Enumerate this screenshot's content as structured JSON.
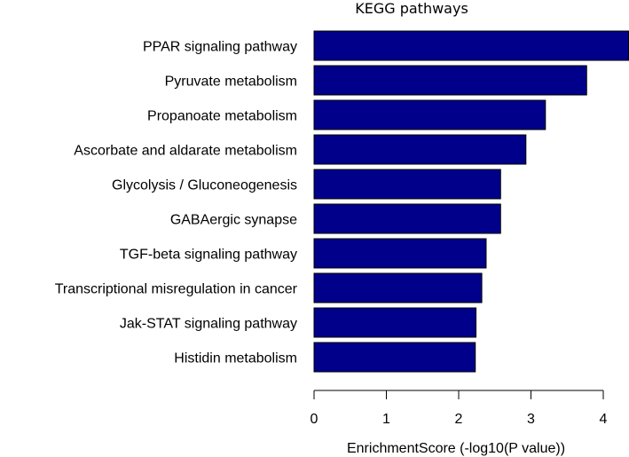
{
  "chart_data": {
    "type": "bar",
    "orientation": "horizontal",
    "title": "KEGG pathways",
    "xlabel": "EnrichmentScore (-log10(P value))",
    "ylabel": "",
    "xlim": [
      0,
      4.35
    ],
    "xticks": [
      0,
      1,
      2,
      3,
      4
    ],
    "grid": false,
    "bar_color": "#00008B",
    "bar_border_color": "#000000",
    "categories": [
      "PPAR signaling pathway",
      "Pyruvate metabolism",
      "Propanoate metabolism",
      "Ascorbate and aldarate metabolism",
      "Glycolysis / Gluconeogenesis",
      "GABAergic synapse",
      "TGF-beta signaling pathway",
      "Transcriptional misregulation in cancer",
      "Jak-STAT signaling pathway",
      "Histidin metabolism"
    ],
    "values": [
      4.35,
      3.77,
      3.2,
      2.93,
      2.58,
      2.58,
      2.38,
      2.32,
      2.24,
      2.23
    ]
  }
}
